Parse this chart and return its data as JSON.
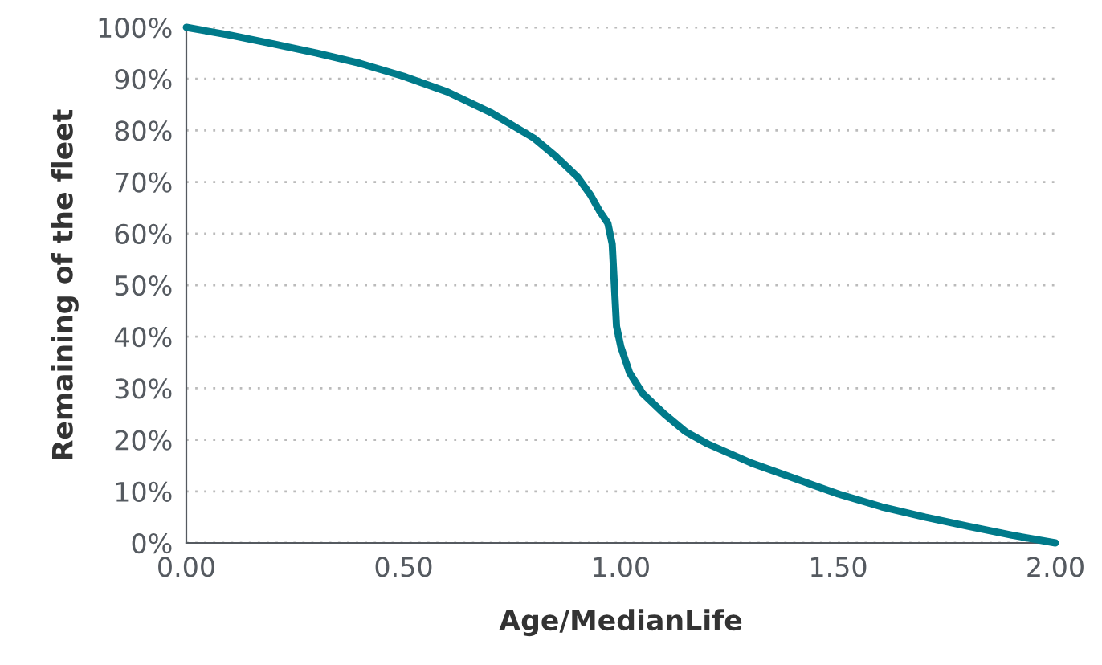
{
  "chart_data": {
    "type": "line",
    "xlabel": "Age/MedianLife",
    "ylabel": "Remaining of the fleet",
    "x": [
      0,
      0.1,
      0.2,
      0.3,
      0.4,
      0.5,
      0.6,
      0.7,
      0.8,
      0.85,
      0.9,
      0.93,
      0.95,
      0.97,
      0.98,
      0.985,
      0.99,
      1.0,
      1.02,
      1.05,
      1.1,
      1.15,
      1.2,
      1.3,
      1.4,
      1.5,
      1.6,
      1.7,
      1.8,
      1.9,
      2.0
    ],
    "series": [
      {
        "color": "#007a8a",
        "values": [
          100,
          98.5,
          96.8,
          95,
          93,
          90.5,
          87.5,
          83.5,
          78.5,
          75,
          71,
          67.5,
          64.5,
          62,
          58,
          50,
          42,
          38,
          33,
          29,
          25,
          21.5,
          19.2,
          15.5,
          12.5,
          9.5,
          7,
          5,
          3.2,
          1.5,
          0
        ]
      }
    ],
    "xlim": [
      0,
      2
    ],
    "xticks": [
      {
        "value": 0,
        "label": "0.00"
      },
      {
        "value": 0.5,
        "label": "0.50"
      },
      {
        "value": 1,
        "label": "1.00"
      },
      {
        "value": 1.5,
        "label": "1.50"
      },
      {
        "value": 2,
        "label": "2.00"
      }
    ],
    "ylim": [
      0,
      100
    ],
    "yticks": [
      {
        "value": 0,
        "label": "0%"
      },
      {
        "value": 10,
        "label": "10%"
      },
      {
        "value": 20,
        "label": "20%"
      },
      {
        "value": 30,
        "label": "30%"
      },
      {
        "value": 40,
        "label": "40%"
      },
      {
        "value": 50,
        "label": "50%"
      },
      {
        "value": 60,
        "label": "60%"
      },
      {
        "value": 70,
        "label": "70%"
      },
      {
        "value": 80,
        "label": "80%"
      },
      {
        "value": 90,
        "label": "90%"
      },
      {
        "value": 100,
        "label": "100%"
      }
    ],
    "grid": "y",
    "marker": "none",
    "line_style": "solid"
  }
}
